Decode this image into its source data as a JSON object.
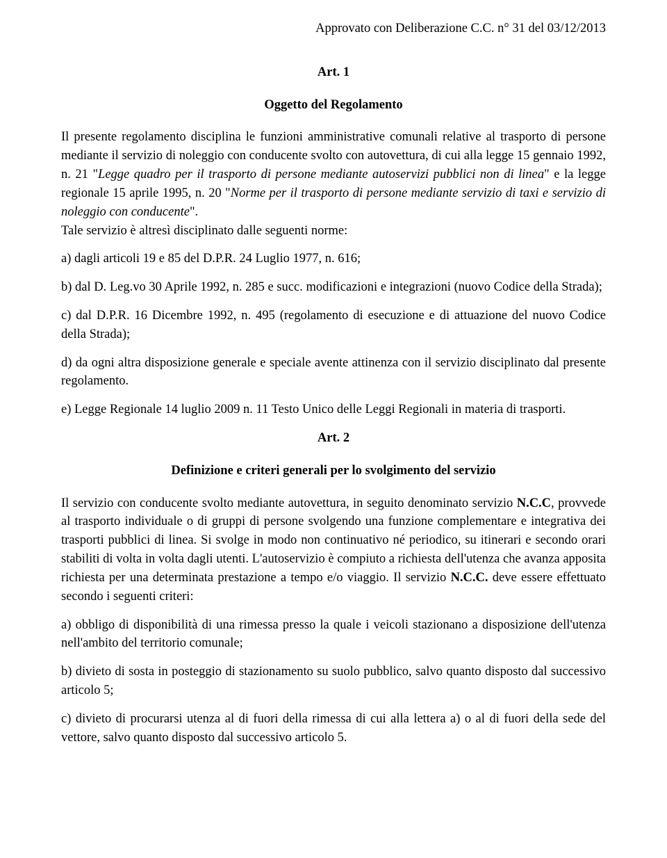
{
  "header": {
    "approval": "Approvato con Deliberazione  C.C. n° 31 del   03/12/2013"
  },
  "art1": {
    "heading": "Art. 1",
    "subtitle": "Oggetto del Regolamento",
    "intro_pre": "Il presente regolamento disciplina le funzioni amministrative comunali relative al trasporto di persone mediante il servizio di noleggio con conducente svolto con autovettura, di cui alla legge 15 gennaio 1992, n. 21 \"",
    "cit1": "Legge quadro per il trasporto di persone mediante autoservizi pubblici non di linea",
    "intro_mid": "\" e la legge regionale 15 aprile 1995, n. 20 \"",
    "cit2": "Norme per il trasporto di persone mediante servizio di taxi e servizio di noleggio con conducente",
    "intro_post": "\".",
    "tale": "Tale servizio è altresì disciplinato dalle seguenti norme:",
    "a": "a) dagli articoli 19 e 85 del D.P.R. 24 Luglio 1977, n. 616;",
    "b": "b) dal D. Leg.vo 30 Aprile 1992, n. 285 e succ. modificazioni e integrazioni (nuovo Codice della Strada);",
    "c": "c) dal D.P.R. 16 Dicembre 1992, n. 495 (regolamento di esecuzione e di attuazione del nuovo Codice della Strada);",
    "d": "d) da ogni altra disposizione generale e speciale avente attinenza con il servizio disciplinato dal presente regolamento.",
    "e": "e) Legge Regionale 14 luglio 2009 n. 11 Testo Unico delle Leggi Regionali in materia di trasporti."
  },
  "art2": {
    "heading": "Art. 2",
    "subtitle": "Definizione e criteri generali per lo svolgimento del servizio",
    "p1_pre": "Il servizio con conducente svolto mediante autovettura, in seguito denominato servizio ",
    "ncc1": "N.C.C",
    "p1_mid": ", provvede al trasporto individuale o di gruppi di persone svolgendo una funzione complementare e integrativa dei trasporti pubblici di linea. Si svolge in modo non continuativo né periodico, su itinerari e secondo orari stabiliti di volta in volta dagli utenti. L'autoservizio è compiuto a richiesta dell'utenza che avanza apposita richiesta per una determinata prestazione a tempo e/o viaggio. Il servizio ",
    "ncc2": "N.C.C.",
    "p1_post": " deve essere effettuato secondo i seguenti criteri:",
    "a": "a) obbligo di disponibilità di una rimessa presso la quale i veicoli stazionano a disposizione dell'utenza nell'ambito del territorio comunale;",
    "b": "b) divieto di sosta in posteggio di stazionamento su suolo pubblico, salvo quanto disposto dal successivo articolo 5;",
    "c": "c) divieto di procurarsi utenza al di fuori della rimessa di cui alla lettera a) o al di fuori della sede del vettore, salvo quanto disposto dal successivo articolo 5."
  }
}
